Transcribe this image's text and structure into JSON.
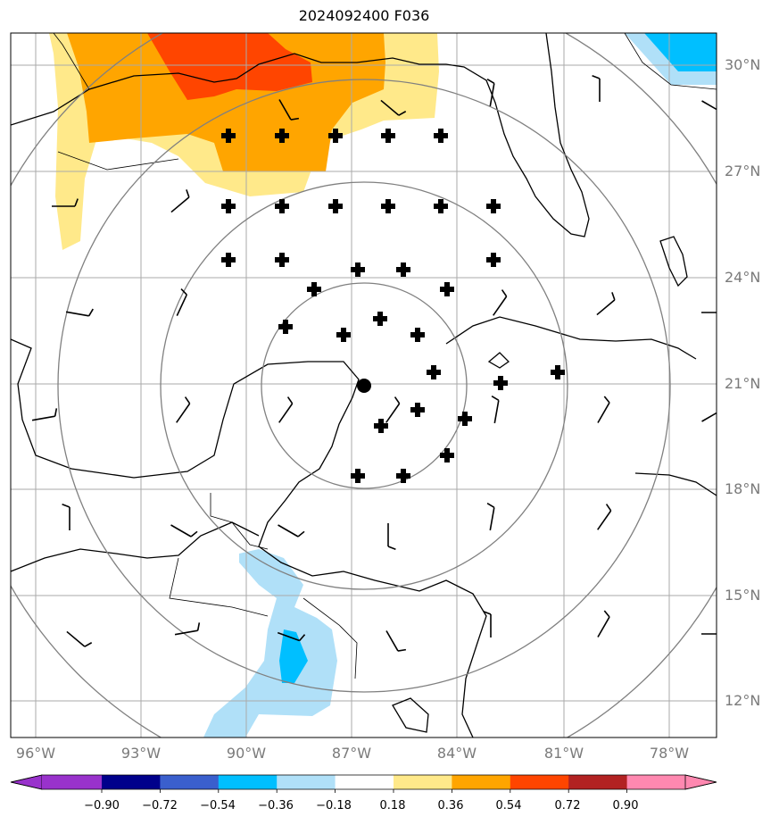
{
  "title": "2024092400 F036",
  "map": {
    "lat_labels": [
      "30°N",
      "27°N",
      "24°N",
      "21°N",
      "18°N",
      "15°N",
      "12°N"
    ],
    "lon_labels": [
      "96°W",
      "93°W",
      "90°W",
      "87°W",
      "84°W",
      "81°W",
      "78°W"
    ],
    "center": {
      "lat": 20.9,
      "lon": -86.8
    },
    "range_rings": 4,
    "colors": {
      "grid": "#aaaaaa",
      "ring": "#808080",
      "coast": "#000000",
      "orange": "#ffa500",
      "orange_red": "#ff4500",
      "light_yellow": "#ffe98a",
      "light_blue": "#b0e0f8",
      "deep_sky_blue": "#00bfff"
    }
  },
  "colorbar": {
    "ticks": [
      "−0.90",
      "−0.72",
      "−0.54",
      "−0.36",
      "−0.18",
      "0.18",
      "0.36",
      "0.54",
      "0.72",
      "0.90"
    ],
    "colors": [
      "#9932cc",
      "#00008b",
      "#3a5fcd",
      "#00bfff",
      "#b0e0f8",
      "#ffffff",
      "#ffe98a",
      "#ffa500",
      "#ff4500",
      "#b22222",
      "#ff88b0"
    ]
  }
}
